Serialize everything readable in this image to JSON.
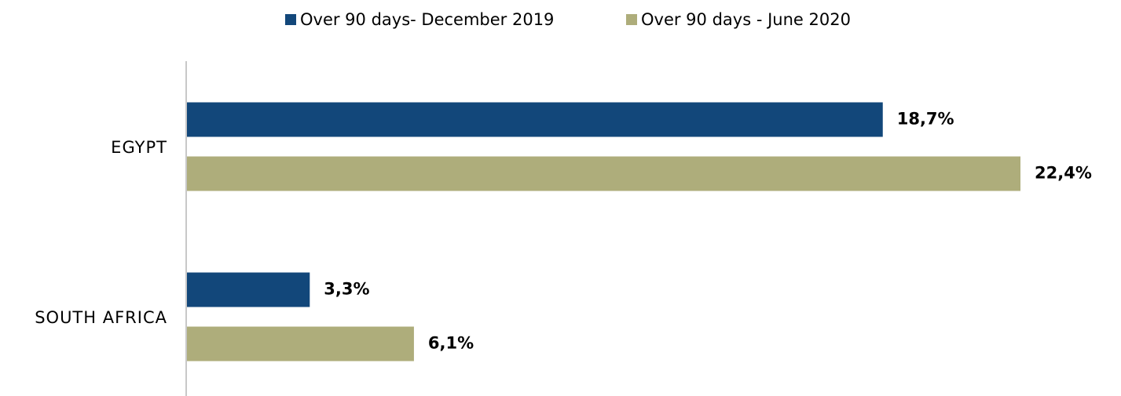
{
  "chart_data": {
    "type": "barh",
    "categories": [
      "EGYPT",
      "SOUTH AFRICA"
    ],
    "series": [
      {
        "name": "Over 90 days- December 2019",
        "color": "#12477a",
        "values": [
          18.7,
          3.3
        ],
        "value_labels": [
          "18,7%",
          "3,3%"
        ]
      },
      {
        "name": "Over 90 days - June 2020",
        "color": "#aead7b",
        "values": [
          22.4,
          6.1
        ],
        "value_labels": [
          "22,4%",
          "6,1%"
        ]
      }
    ],
    "legend": "top"
  }
}
